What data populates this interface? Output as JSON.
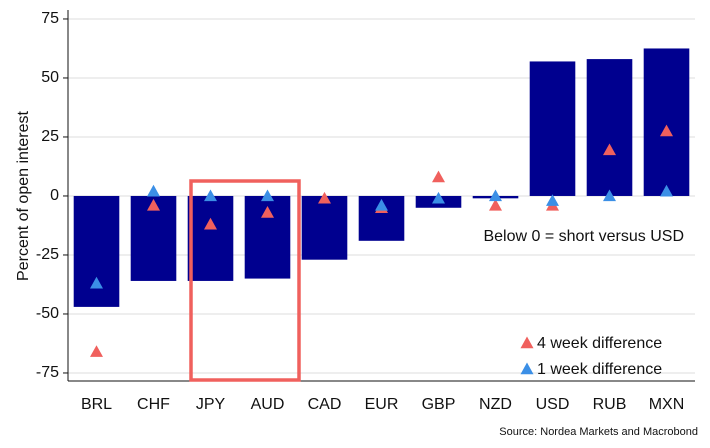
{
  "chart_data": {
    "type": "bar",
    "categories": [
      "BRL",
      "CHF",
      "JPY",
      "AUD",
      "CAD",
      "EUR",
      "GBP",
      "NZD",
      "USD",
      "RUB",
      "MXN"
    ],
    "values": [
      -47,
      -36,
      -36,
      -35,
      -27,
      -19,
      -5,
      -1,
      57,
      58,
      62.5
    ],
    "color": "#00008f",
    "series": [
      {
        "name": "4 week difference",
        "color": "#f0605d",
        "values": [
          -66,
          -4,
          -12,
          -7,
          -1,
          -5,
          8,
          -4,
          -4,
          19.5,
          27.5
        ]
      },
      {
        "name": "1 week difference",
        "color": "#3b8fe6",
        "values": [
          -37,
          2,
          0,
          0,
          null,
          -4,
          -1,
          0,
          -2,
          0,
          2
        ]
      }
    ],
    "ylabel": "Percent of open interest",
    "annotation": "Below 0 = short versus USD",
    "source": "Source: Nordea Markets and Macrobond",
    "ylim": [
      -78.4,
      78.8
    ],
    "yticks": [
      -75,
      -50,
      -25,
      0,
      25,
      50,
      75
    ],
    "grid": true,
    "legend": "lower right"
  }
}
